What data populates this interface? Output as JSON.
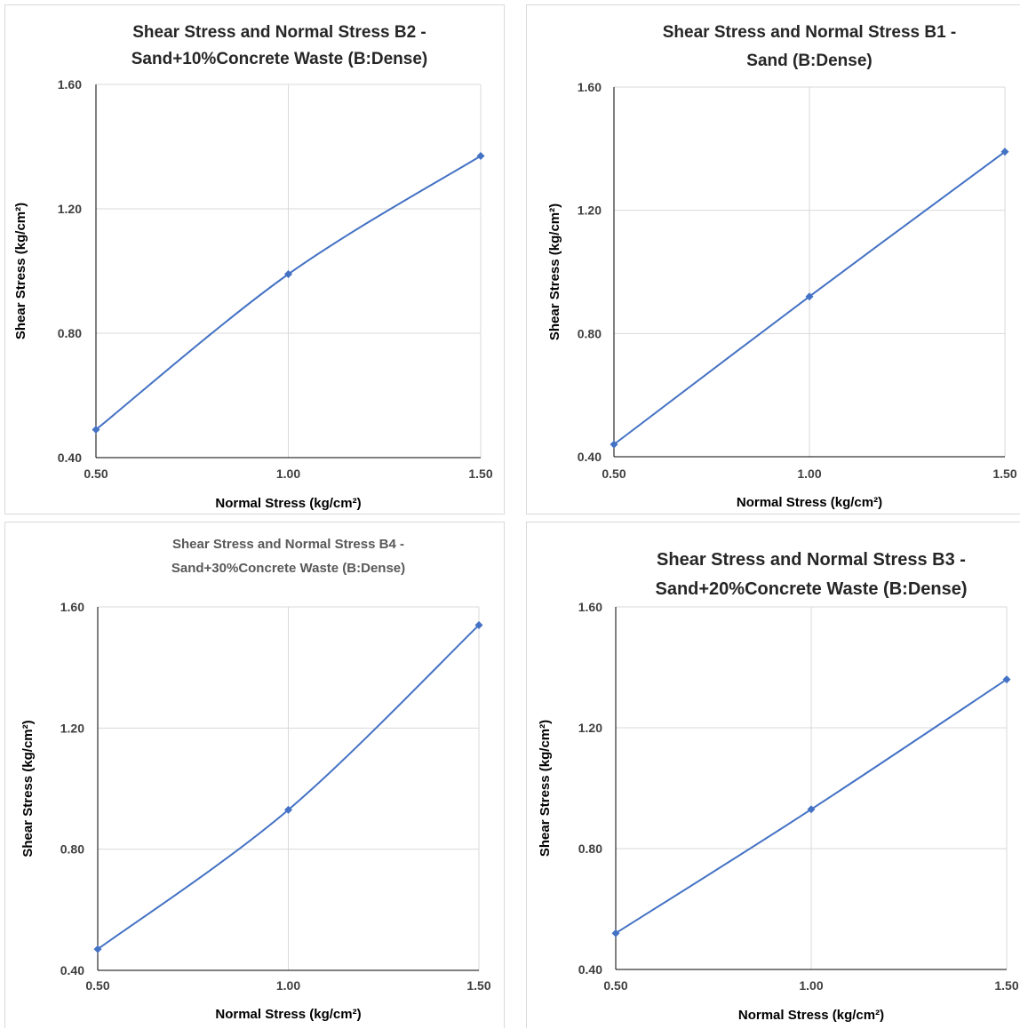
{
  "colors": {
    "series": "#4472C4",
    "grid": "#d9d9d9",
    "axis": "#000000"
  },
  "chart_data": [
    {
      "id": "b2",
      "type": "scatter",
      "title_lines": [
        "Shear Stress and Normal Stress B2 -",
        "Sand+10%Concrete Waste (B:Dense)"
      ],
      "xlabel": "Normal Stress (kg/cm²)",
      "ylabel": "Shear Stress (kg/cm²)",
      "xlim": [
        0.5,
        1.5
      ],
      "ylim": [
        0.4,
        1.6
      ],
      "xticks": [
        "0.50",
        "1.00",
        "1.50"
      ],
      "yticks": [
        "0.40",
        "0.80",
        "1.20",
        "1.60"
      ],
      "grid": true,
      "smooth": true,
      "series": [
        {
          "x": [
            0.5,
            1.0,
            1.5
          ],
          "y": [
            0.49,
            0.99,
            1.37
          ]
        }
      ]
    },
    {
      "id": "b1",
      "type": "scatter",
      "title_lines": [
        "Shear Stress and Normal Stress B1 -",
        "Sand (B:Dense)"
      ],
      "xlabel": "Normal Stress (kg/cm²)",
      "ylabel": "Shear Stress (kg/cm²)",
      "xlim": [
        0.5,
        1.5
      ],
      "ylim": [
        0.4,
        1.6
      ],
      "xticks": [
        "0.50",
        "1.00",
        "1.50"
      ],
      "yticks": [
        "0.40",
        "0.80",
        "1.20",
        "1.60"
      ],
      "grid": true,
      "smooth": true,
      "series": [
        {
          "x": [
            0.5,
            1.0,
            1.5
          ],
          "y": [
            0.44,
            0.92,
            1.39
          ]
        }
      ]
    },
    {
      "id": "b4",
      "type": "scatter",
      "title_lines": [
        "Shear Stress and Normal Stress B4 -",
        "Sand+30%Concrete Waste (B:Dense)"
      ],
      "title_muted": true,
      "xlabel": "Normal Stress (kg/cm²)",
      "ylabel": "Shear Stress (kg/cm²)",
      "xlim": [
        0.5,
        1.5
      ],
      "ylim": [
        0.4,
        1.6
      ],
      "xticks": [
        "0.50",
        "1.00",
        "1.50"
      ],
      "yticks": [
        "0.40",
        "0.80",
        "1.20",
        "1.60"
      ],
      "grid": true,
      "smooth": true,
      "series": [
        {
          "x": [
            0.5,
            1.0,
            1.5
          ],
          "y": [
            0.47,
            0.93,
            1.54
          ]
        }
      ]
    },
    {
      "id": "b3",
      "type": "scatter",
      "title_lines": [
        "Shear Stress and Normal Stress B3 -",
        "Sand+20%Concrete Waste (B:Dense)"
      ],
      "xlabel": "Normal Stress (kg/cm²)",
      "ylabel": "Shear Stress (kg/cm²)",
      "xlim": [
        0.5,
        1.5
      ],
      "ylim": [
        0.4,
        1.6
      ],
      "xticks": [
        "0.50",
        "1.00",
        "1.50"
      ],
      "yticks": [
        "0.40",
        "0.80",
        "1.20",
        "1.60"
      ],
      "grid": true,
      "smooth": true,
      "series": [
        {
          "x": [
            0.5,
            1.0,
            1.5
          ],
          "y": [
            0.52,
            0.93,
            1.36
          ]
        }
      ]
    }
  ]
}
